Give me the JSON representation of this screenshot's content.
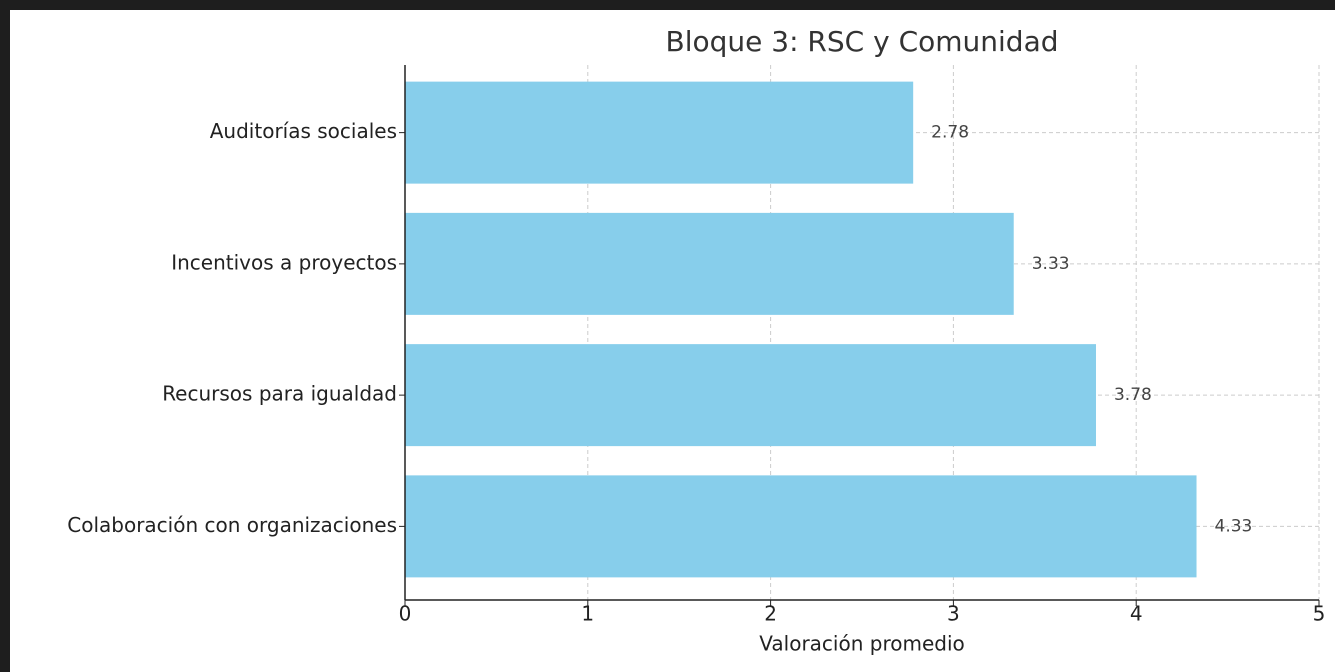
{
  "chart_data": {
    "type": "barh",
    "title": "Bloque 3: RSC y Comunidad",
    "xlabel": "Valoración promedio",
    "categories": [
      "Auditorías sociales",
      "Incentivos a proyectos",
      "Recursos para igualdad",
      "Colaboración con organizaciones"
    ],
    "values": [
      2.78,
      3.33,
      3.78,
      4.33
    ],
    "color": "#87ceeb",
    "xlim": [
      0,
      5
    ],
    "xticks": [
      0,
      1,
      2,
      3,
      4,
      5
    ],
    "grid": true
  }
}
